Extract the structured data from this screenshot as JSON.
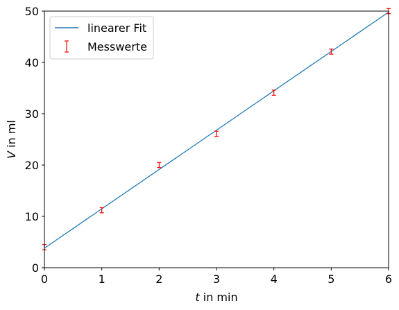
{
  "chart_data": {
    "type": "scatter",
    "xlabel": {
      "var": "t",
      "unit": " in min"
    },
    "ylabel": {
      "var": "V",
      "unit": " in ml"
    },
    "xlim": [
      0,
      6
    ],
    "ylim": [
      0,
      50
    ],
    "x_ticks": [
      "0",
      "1",
      "2",
      "3",
      "4",
      "5",
      "6"
    ],
    "y_ticks": [
      "0",
      "10",
      "20",
      "30",
      "40",
      "50"
    ],
    "grid": false,
    "legend_position": "top-left",
    "series": [
      {
        "name": "linearer Fit",
        "kind": "line",
        "color": "#1f77b4",
        "x": [
          0,
          6
        ],
        "y": [
          3.8,
          49.8
        ]
      },
      {
        "name": "Messwerte",
        "kind": "errorbar",
        "color": "#ff0000",
        "x": [
          0,
          1,
          2,
          3,
          4,
          5,
          6
        ],
        "y": [
          4.0,
          11.2,
          20.0,
          26.1,
          34.1,
          42.1,
          50.0
        ],
        "yerr": [
          0.5,
          0.5,
          0.5,
          0.5,
          0.5,
          0.5,
          0.5
        ]
      }
    ]
  }
}
